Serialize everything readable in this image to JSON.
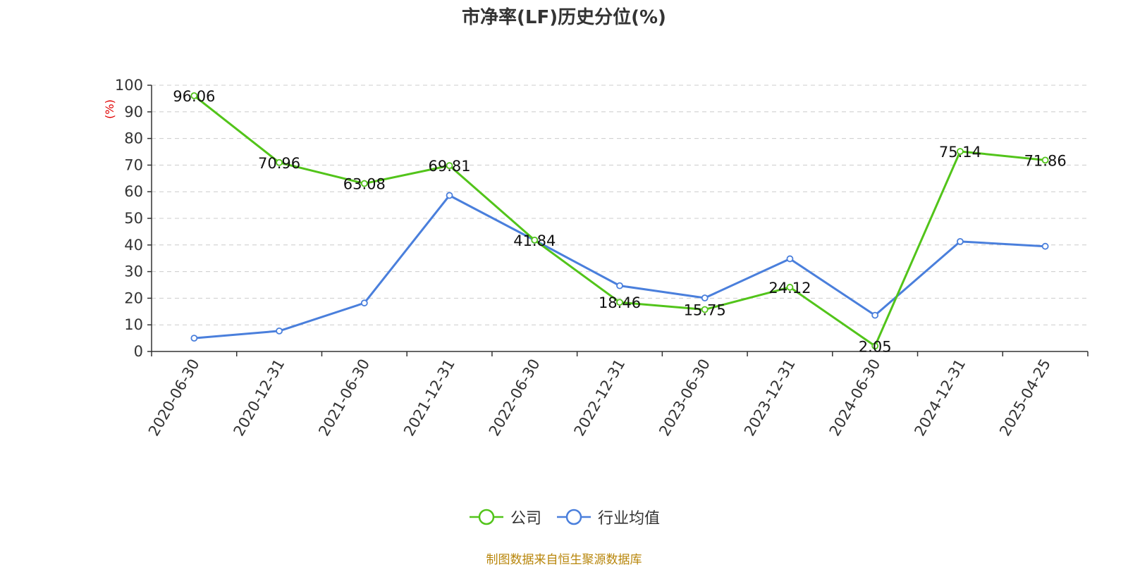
{
  "title": "市净率(LF)历史分位(%)",
  "source": "制图数据来自恒生聚源数据库",
  "colors": {
    "company": "#52c41a",
    "industry": "#4a7fdc",
    "unit": "#e00000"
  },
  "chart_data": {
    "type": "line",
    "title": "市净率(LF)历史分位(%)",
    "ylabel": "(%)",
    "xlabel": "",
    "ylim": [
      0,
      100
    ],
    "yticks": [
      0,
      10,
      20,
      30,
      40,
      50,
      60,
      70,
      80,
      90,
      100
    ],
    "grid": true,
    "legend_position": "bottom",
    "categories": [
      "2020-06-30",
      "2020-12-31",
      "2021-06-30",
      "2021-12-31",
      "2022-06-30",
      "2022-12-31",
      "2023-06-30",
      "2023-12-31",
      "2024-06-30",
      "2024-12-31",
      "2025-04-25"
    ],
    "series": [
      {
        "name": "公司",
        "values": [
          96.06,
          70.96,
          63.08,
          69.81,
          41.84,
          18.46,
          15.75,
          24.12,
          2.05,
          75.14,
          71.86
        ],
        "labels": [
          "96.06",
          "70.96",
          "63.08",
          "69.81",
          "41.84",
          "18.46",
          "15.75",
          "24.12",
          "2.05",
          "75.14",
          "71.86"
        ]
      },
      {
        "name": "行业均值",
        "values": [
          5.0,
          7.7,
          18.2,
          58.6,
          41.8,
          24.7,
          20.1,
          34.8,
          13.6,
          41.3,
          39.5
        ]
      }
    ]
  }
}
